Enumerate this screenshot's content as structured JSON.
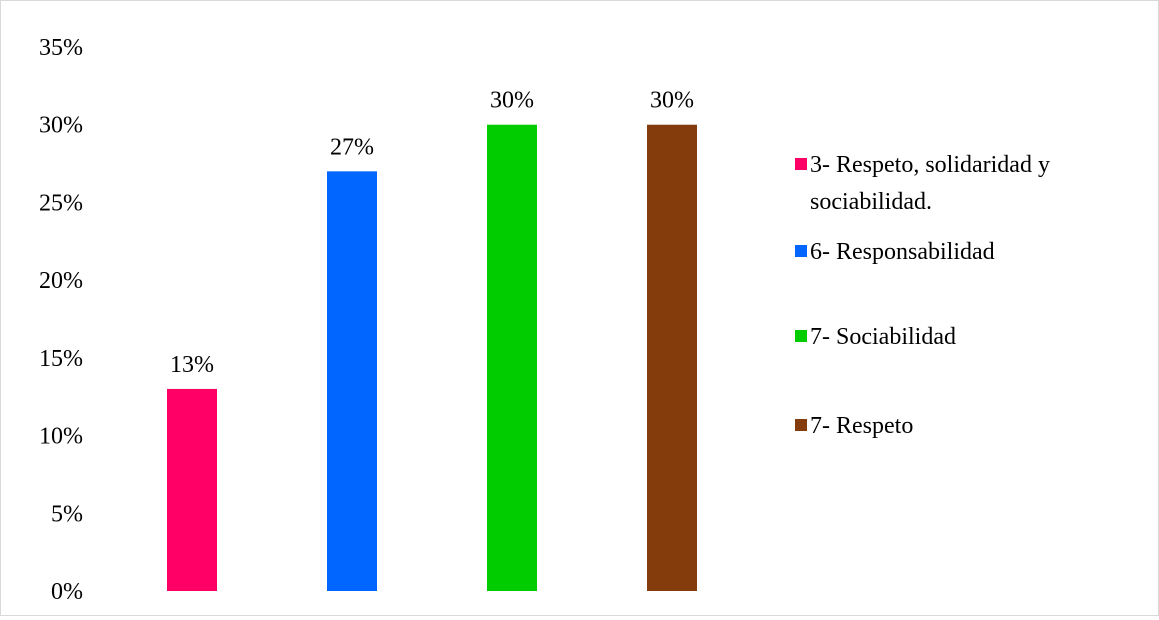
{
  "chart_data": {
    "type": "bar",
    "categories": [
      "3- Respeto, solidaridad y sociabilidad.",
      "6- Responsabilidad",
      "7- Sociabilidad",
      "7- Respeto"
    ],
    "values": [
      13,
      27,
      30,
      30
    ],
    "data_labels": [
      "13%",
      "27%",
      "30%",
      "30%"
    ],
    "colors": [
      "#ff0066",
      "#0066ff",
      "#00cc00",
      "#843c0c"
    ],
    "ylim": [
      0,
      35
    ],
    "yticks": [
      {
        "value": 0,
        "label": "0%"
      },
      {
        "value": 5,
        "label": "5%"
      },
      {
        "value": 10,
        "label": "10%"
      },
      {
        "value": 15,
        "label": "15%"
      },
      {
        "value": 20,
        "label": "20%"
      },
      {
        "value": 25,
        "label": "25%"
      },
      {
        "value": 30,
        "label": "30%"
      },
      {
        "value": 35,
        "label": "35%"
      }
    ],
    "legend": {
      "position": "right",
      "entries": [
        {
          "lines": [
            "3- Respeto,  solidaridad y",
            "sociabilidad."
          ],
          "color": "#ff0066"
        },
        {
          "lines": [
            "6- Responsabilidad"
          ],
          "color": "#0066ff"
        },
        {
          "lines": [
            "7- Sociabilidad"
          ],
          "color": "#00cc00"
        },
        {
          "lines": [
            "7- Respeto"
          ],
          "color": "#843c0c"
        }
      ]
    },
    "grid": false,
    "title": "",
    "xlabel": "",
    "ylabel": ""
  }
}
